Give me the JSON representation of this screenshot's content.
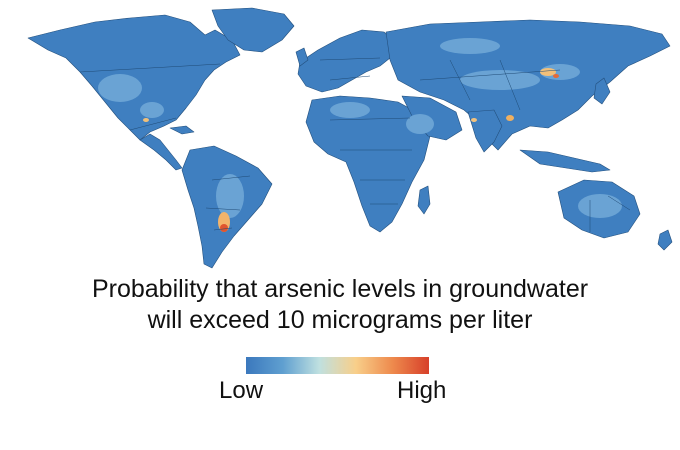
{
  "caption": {
    "line1": "Probability that arsenic levels in groundwater",
    "line2": "will exceed 10 micrograms per liter"
  },
  "legend": {
    "low_label": "Low",
    "high_label": "High",
    "colors": [
      "#3b78bd",
      "#5f9fd0",
      "#bfe0e0",
      "#f8cf8a",
      "#ee8a4d",
      "#d7402a"
    ]
  }
}
